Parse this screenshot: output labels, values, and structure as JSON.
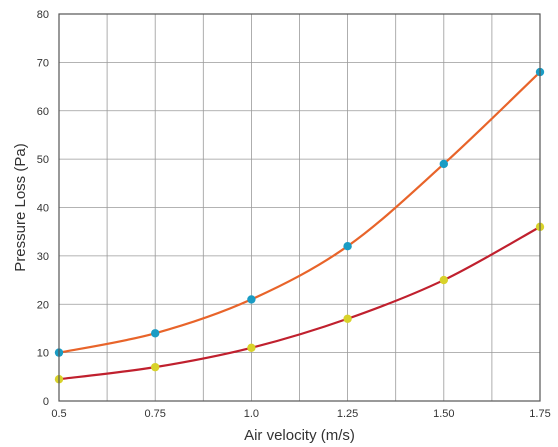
{
  "chart_data": {
    "type": "line",
    "title": "",
    "xlabel": "Air velocity (m/s)",
    "ylabel": "Pressure Loss (Pa)",
    "xlim": [
      0.5,
      1.75
    ],
    "ylim": [
      0,
      80
    ],
    "x_ticks": [
      0.5,
      0.75,
      1.0,
      1.25,
      1.5,
      1.75
    ],
    "x_tick_labels": [
      "0.5",
      "0.75",
      "1.0",
      "1.25",
      "1.50",
      "1.75"
    ],
    "y_ticks": [
      0,
      10,
      20,
      30,
      40,
      50,
      60,
      70,
      80
    ],
    "y_tick_labels": [
      "0",
      "10",
      "20",
      "30",
      "40",
      "50",
      "60",
      "70",
      "80"
    ],
    "grid": true,
    "x": [
      0.5,
      0.75,
      1.0,
      1.25,
      1.5,
      1.75
    ],
    "series": [
      {
        "values": [
          10,
          14,
          21,
          32,
          49,
          68
        ],
        "line_color": "#E8642A",
        "marker_color": "#1A9CC4"
      },
      {
        "values": [
          4.5,
          7,
          11,
          17,
          25,
          36
        ],
        "line_color": "#C0202E",
        "marker_color": "#D8D22A"
      }
    ]
  }
}
